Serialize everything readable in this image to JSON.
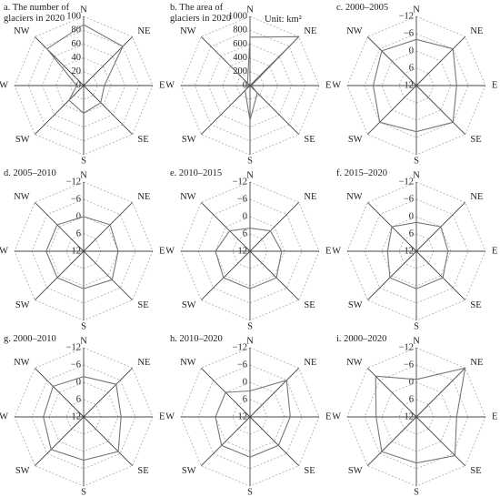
{
  "chart_data": [
    {
      "type": "radar",
      "title": "a. The number of glaciers in 2020",
      "categories": [
        "N",
        "NE",
        "E",
        "SE",
        "S",
        "SW",
        "W",
        "NW"
      ],
      "values": [
        88,
        80,
        30,
        35,
        40,
        30,
        10,
        75
      ],
      "rlim": [
        0,
        100
      ],
      "rticks": [
        0,
        20,
        40,
        60,
        80,
        100
      ],
      "color": "#777777"
    },
    {
      "type": "radar",
      "title": "b. The area of glaciers in 2020",
      "subtitle": "Unit: km²",
      "categories": [
        "N",
        "NE",
        "E",
        "SE",
        "S",
        "SW",
        "W",
        "NW"
      ],
      "values": [
        700,
        1000,
        20,
        150,
        500,
        100,
        20,
        50
      ],
      "rlim": [
        0,
        1000
      ],
      "rticks": [
        0,
        200,
        400,
        600,
        800,
        1000
      ],
      "color": "#777777"
    },
    {
      "type": "radar",
      "title": "c. 2000–2005",
      "categories": [
        "N",
        "NE",
        "E",
        "SE",
        "S",
        "SW",
        "W",
        "NW"
      ],
      "values": [
        -4,
        -6,
        -2,
        -6,
        -4,
        -6,
        -3,
        -5
      ],
      "rlim": [
        12,
        -12
      ],
      "rticks": [
        {
          "value": -12,
          "label": "−12"
        },
        {
          "value": -6,
          "label": "−6"
        },
        0,
        6,
        12
      ],
      "color": "#777777"
    },
    {
      "type": "radar",
      "title": "d. 2005–2010",
      "categories": [
        "N",
        "NE",
        "E",
        "SE",
        "S",
        "SW",
        "W",
        "NW"
      ],
      "values": [
        0,
        -1,
        0,
        -2,
        -1,
        -1,
        -1,
        -1
      ],
      "rlim": [
        12,
        -12
      ],
      "rticks": [
        {
          "value": -12,
          "label": "−12"
        },
        {
          "value": -6,
          "label": "−6"
        },
        0,
        6,
        12
      ],
      "color": "#777777"
    },
    {
      "type": "radar",
      "title": "e. 2010–2015",
      "categories": [
        "N",
        "NE",
        "E",
        "SE",
        "S",
        "SW",
        "W",
        "NW"
      ],
      "values": [
        4,
        2,
        1,
        -1,
        -1,
        -1,
        0,
        2
      ],
      "rlim": [
        12,
        -12
      ],
      "rticks": [
        {
          "value": -12,
          "label": "−12"
        },
        {
          "value": -6,
          "label": "−6"
        },
        0,
        6,
        12
      ],
      "color": "#777777"
    },
    {
      "type": "radar",
      "title": "f. 2015–2020",
      "categories": [
        "N",
        "NE",
        "E",
        "SE",
        "S",
        "SW",
        "W",
        "NW"
      ],
      "values": [
        2,
        0,
        1,
        -1,
        -1,
        -1,
        2,
        0
      ],
      "rlim": [
        12,
        -12
      ],
      "rticks": [
        {
          "value": -12,
          "label": "−12"
        },
        {
          "value": -6,
          "label": "−6"
        },
        0,
        6,
        12
      ],
      "color": "#777777"
    },
    {
      "type": "radar",
      "title": "g. 2000–2010",
      "categories": [
        "N",
        "NE",
        "E",
        "SE",
        "S",
        "SW",
        "W",
        "NW"
      ],
      "values": [
        -2,
        -4,
        -1,
        -5,
        -3,
        -4,
        -2,
        -3
      ],
      "rlim": [
        12,
        -12
      ],
      "rticks": [
        {
          "value": -12,
          "label": "−12"
        },
        {
          "value": -6,
          "label": "−6"
        },
        0,
        6,
        12
      ],
      "color": "#777777"
    },
    {
      "type": "radar",
      "title": "h. 2010–2020",
      "categories": [
        "N",
        "NE",
        "E",
        "SE",
        "S",
        "SW",
        "W",
        "NW"
      ],
      "values": [
        3,
        -6,
        -2,
        -2,
        -2,
        -2,
        0,
        0
      ],
      "rlim": [
        12,
        -12
      ],
      "rticks": [
        {
          "value": -12,
          "label": "−12"
        },
        {
          "value": -6,
          "label": "−6"
        },
        0,
        6,
        12
      ],
      "color": "#777777"
    },
    {
      "type": "radar",
      "title": "i. 2000–2020",
      "categories": [
        "N",
        "NE",
        "E",
        "SE",
        "S",
        "SW",
        "W",
        "NW"
      ],
      "values": [
        -1,
        -12,
        -2,
        -7,
        -4,
        -5,
        -2,
        -8
      ],
      "rlim": [
        12,
        -12
      ],
      "rticks": [
        {
          "value": -12,
          "label": "−12"
        },
        {
          "value": -6,
          "label": "−6"
        },
        0,
        6,
        12
      ],
      "color": "#777777"
    }
  ]
}
